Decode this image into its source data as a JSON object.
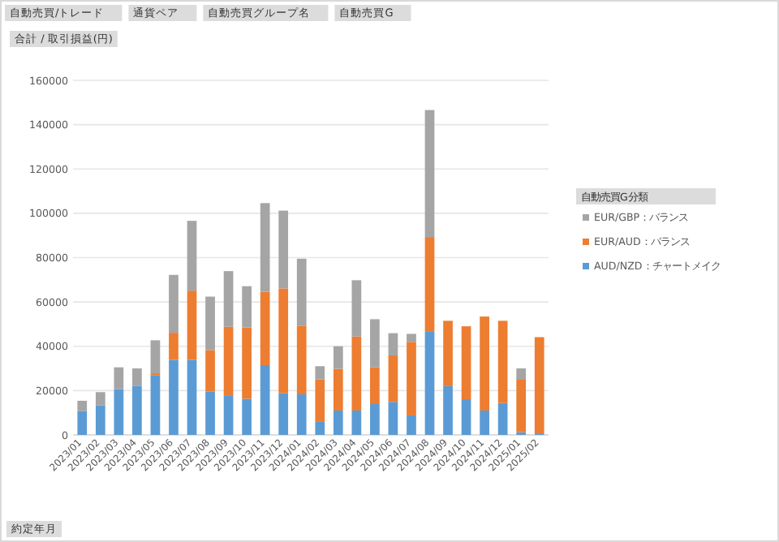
{
  "chart_data": {
    "type": "bar",
    "stacked": true,
    "annotations": [
      "自動売買/トレード",
      "通貨ペア",
      "自動売買グループ名",
      "自動売買G"
    ],
    "ylabel": "合計 / 取引損益(円)",
    "xlabel": "約定年月",
    "legend_title": "自動売買G分類",
    "legend": "right",
    "grid": "y",
    "categories": [
      "2023/01",
      "2023/02",
      "2023/03",
      "2023/04",
      "2023/05",
      "2023/06",
      "2023/07",
      "2023/08",
      "2023/09",
      "2023/10",
      "2023/11",
      "2023/12",
      "2024/01",
      "2024/02",
      "2024/03",
      "2024/04",
      "2024/05",
      "2024/06",
      "2024/07",
      "2024/08",
      "2024/09",
      "2024/10",
      "2024/11",
      "2024/12",
      "2025/01",
      "2025/02"
    ],
    "ylim": [
      0,
      160000
    ],
    "yticks": [
      0,
      20000,
      40000,
      60000,
      80000,
      100000,
      120000,
      140000,
      160000
    ],
    "series": [
      {
        "name": "AUD/NZD：チャートメイク",
        "color": "#5b9bd5",
        "values": [
          10700,
          13400,
          20700,
          22200,
          26800,
          33900,
          33900,
          19500,
          17600,
          16300,
          31500,
          18800,
          18300,
          5900,
          11000,
          11000,
          13900,
          14900,
          8800,
          46800,
          22000,
          16100,
          11000,
          14400,
          1200,
          700
        ]
      },
      {
        "name": "EUR/AUD：バランス",
        "color": "#ed7d31",
        "values": [
          null,
          null,
          null,
          null,
          1000,
          12200,
          31200,
          18800,
          31200,
          32200,
          33100,
          47300,
          31000,
          19200,
          18800,
          33400,
          16600,
          21000,
          33200,
          42500,
          29500,
          32900,
          42400,
          37100,
          23700,
          43400
        ]
      },
      {
        "name": "EUR/GBP：バランス",
        "color": "#a5a5a5",
        "values": [
          4700,
          5900,
          9800,
          7800,
          14900,
          26100,
          31500,
          24100,
          25100,
          18600,
          40000,
          35100,
          30200,
          5900,
          10200,
          25400,
          21700,
          10000,
          3600,
          57300,
          null,
          null,
          null,
          null,
          5100,
          null
        ]
      }
    ]
  }
}
